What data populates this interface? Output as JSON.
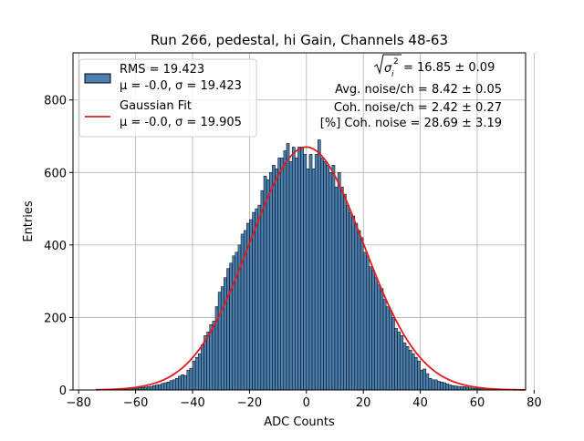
{
  "chart_data": {
    "type": "bar",
    "title": "Run 266, pedestal, hi Gain, Channels 48-63",
    "xlabel": "ADC Counts",
    "ylabel": "Entries",
    "xlim": [
      -82,
      77
    ],
    "ylim": [
      0,
      930
    ],
    "x_ticks": [
      -80,
      -60,
      -40,
      -20,
      0,
      20,
      40,
      60,
      80
    ],
    "y_ticks": [
      0,
      200,
      400,
      600,
      800
    ],
    "grid": true,
    "bar_fill": "#4a7fb0",
    "fit_color": "#e6191b",
    "legend_position": "top-left",
    "legend": {
      "hist_line1": "RMS = 19.423",
      "hist_line2": "μ = -0.0, σ = 19.423",
      "fit_line1": "Gaussian Fit",
      "fit_line2": "μ = -0.0, σ = 19.905"
    },
    "annotations": {
      "sqrt_value": " = 16.85 ± 0.09",
      "avg_noise": "Avg. noise/ch = 8.42 ± 0.05",
      "coh_noise": "Coh. noise/ch = 2.42 ± 0.27",
      "coh_percent": "[%] Coh. noise = 28.69 ± 3.19"
    },
    "gaussian_fit": {
      "mu": 0.0,
      "sigma": 19.905,
      "amplitude": 670,
      "x_range": [
        -74,
        77
      ]
    },
    "histogram": {
      "bin_width": 1,
      "bin_starts": [
        -74,
        -73,
        -72,
        -71,
        -70,
        -69,
        -68,
        -67,
        -66,
        -65,
        -64,
        -63,
        -62,
        -61,
        -60,
        -59,
        -58,
        -57,
        -56,
        -55,
        -54,
        -53,
        -52,
        -51,
        -50,
        -49,
        -48,
        -47,
        -46,
        -45,
        -44,
        -43,
        -42,
        -41,
        -40,
        -39,
        -38,
        -37,
        -36,
        -35,
        -34,
        -33,
        -32,
        -31,
        -30,
        -29,
        -28,
        -27,
        -26,
        -25,
        -24,
        -23,
        -22,
        -21,
        -20,
        -19,
        -18,
        -17,
        -16,
        -15,
        -14,
        -13,
        -12,
        -11,
        -10,
        -9,
        -8,
        -7,
        -6,
        -5,
        -4,
        -3,
        -2,
        -1,
        0,
        1,
        2,
        3,
        4,
        5,
        6,
        7,
        8,
        9,
        10,
        11,
        12,
        13,
        14,
        15,
        16,
        17,
        18,
        19,
        20,
        21,
        22,
        23,
        24,
        25,
        26,
        27,
        28,
        29,
        30,
        31,
        32,
        33,
        34,
        35,
        36,
        37,
        38,
        39,
        40,
        41,
        42,
        43,
        44,
        45,
        46,
        47,
        48,
        49,
        50,
        51,
        52,
        53,
        54,
        55,
        56,
        57,
        58,
        59,
        60,
        61,
        62,
        63,
        64,
        65,
        66,
        67,
        68,
        69,
        70,
        71,
        72,
        73,
        74,
        75,
        76
      ],
      "counts": [
        0,
        0,
        0,
        1,
        1,
        1,
        1,
        2,
        2,
        2,
        2,
        3,
        4,
        4,
        5,
        6,
        7,
        8,
        9,
        10,
        12,
        14,
        15,
        18,
        20,
        22,
        26,
        28,
        32,
        38,
        42,
        40,
        55,
        60,
        80,
        90,
        100,
        125,
        150,
        160,
        180,
        190,
        230,
        270,
        285,
        310,
        335,
        350,
        370,
        380,
        400,
        430,
        440,
        460,
        470,
        490,
        500,
        510,
        550,
        590,
        580,
        600,
        620,
        610,
        640,
        640,
        660,
        680,
        630,
        670,
        640,
        670,
        670,
        650,
        610,
        650,
        610,
        650,
        690,
        640,
        630,
        620,
        600,
        620,
        560,
        600,
        560,
        540,
        510,
        490,
        480,
        460,
        440,
        420,
        380,
        370,
        340,
        330,
        310,
        290,
        280,
        250,
        230,
        220,
        200,
        170,
        160,
        150,
        130,
        120,
        110,
        100,
        90,
        80,
        55,
        58,
        45,
        32,
        28,
        28,
        24,
        22,
        20,
        17,
        14,
        12,
        11,
        10,
        9,
        9,
        8,
        6,
        5,
        5,
        4,
        4,
        3,
        3,
        2,
        2,
        2,
        1,
        1,
        1,
        1,
        0,
        0,
        0,
        0,
        0,
        0
      ]
    }
  }
}
